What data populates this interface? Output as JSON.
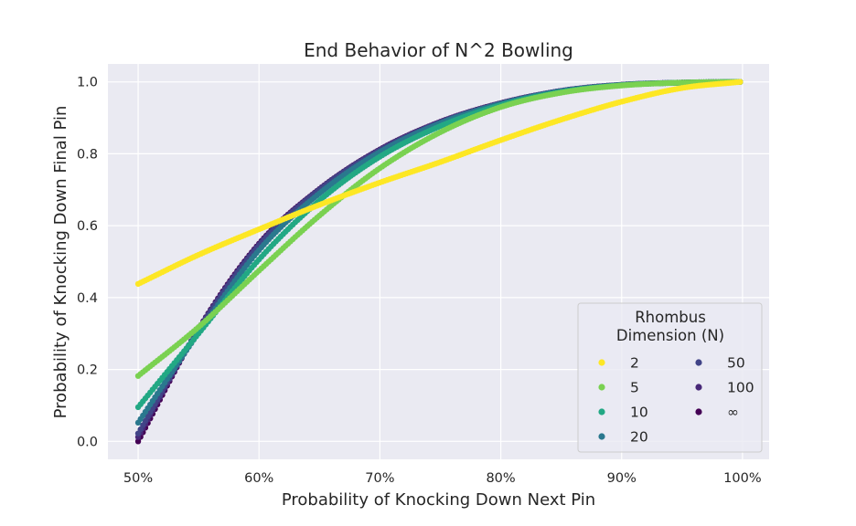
{
  "chart_data": {
    "type": "scatter",
    "title": "End Behavior of N^2 Bowling",
    "xlabel": "Probability of Knocking Down Next Pin",
    "ylabel": "Probability of Knocking Down Final Pin",
    "xlim": [
      0.475,
      1.022
    ],
    "ylim": [
      -0.05,
      1.05
    ],
    "x_ticks": [
      0.5,
      0.6,
      0.7,
      0.8,
      0.9,
      1.0
    ],
    "x_tick_labels": [
      "50%",
      "60%",
      "70%",
      "80%",
      "90%",
      "100%"
    ],
    "y_ticks": [
      0.0,
      0.2,
      0.4,
      0.6,
      0.8,
      1.0
    ],
    "y_tick_labels": [
      "0.0",
      "0.2",
      "0.4",
      "0.6",
      "0.8",
      "1.0"
    ],
    "grid": true,
    "background": "#eaeaf2",
    "legend": {
      "title": "Rhombus\nDimension (N)",
      "placement": "lower-right",
      "columns": 2
    },
    "series": [
      {
        "name": "2",
        "color": "#fde725",
        "x": [
          0.5,
          0.55,
          0.6,
          0.65,
          0.7,
          0.75,
          0.8,
          0.85,
          0.9,
          0.95,
          0.998
        ],
        "y": [
          0.438,
          0.519,
          0.59,
          0.658,
          0.72,
          0.777,
          0.838,
          0.895,
          0.945,
          0.983,
          1.0
        ]
      },
      {
        "name": "5",
        "color": "#7ad151",
        "x": [
          0.5,
          0.55,
          0.6,
          0.65,
          0.7,
          0.75,
          0.8,
          0.85,
          0.9,
          0.95,
          0.998
        ],
        "y": [
          0.182,
          0.318,
          0.475,
          0.628,
          0.76,
          0.86,
          0.93,
          0.97,
          0.99,
          0.998,
          1.0
        ]
      },
      {
        "name": "10",
        "color": "#22a884",
        "x": [
          0.5,
          0.55,
          0.6,
          0.65,
          0.7,
          0.75,
          0.8,
          0.85,
          0.9,
          0.95,
          0.998
        ],
        "y": [
          0.095,
          0.3,
          0.506,
          0.67,
          0.792,
          0.877,
          0.935,
          0.972,
          0.991,
          0.998,
          1.0
        ]
      },
      {
        "name": "20",
        "color": "#2a788e",
        "x": [
          0.5,
          0.55,
          0.6,
          0.65,
          0.7,
          0.75,
          0.8,
          0.85,
          0.9,
          0.95,
          0.998
        ],
        "y": [
          0.052,
          0.302,
          0.532,
          0.69,
          0.805,
          0.885,
          0.939,
          0.974,
          0.991,
          0.998,
          1.0
        ]
      },
      {
        "name": "50",
        "color": "#414487",
        "x": [
          0.5,
          0.55,
          0.6,
          0.65,
          0.7,
          0.75,
          0.8,
          0.85,
          0.9,
          0.95,
          0.998
        ],
        "y": [
          0.022,
          0.311,
          0.545,
          0.7,
          0.81,
          0.888,
          0.94,
          0.975,
          0.992,
          0.998,
          1.0
        ]
      },
      {
        "name": "100",
        "color": "#482878",
        "x": [
          0.5,
          0.55,
          0.6,
          0.65,
          0.7,
          0.75,
          0.8,
          0.85,
          0.9,
          0.95,
          0.998
        ],
        "y": [
          0.012,
          0.312,
          0.548,
          0.701,
          0.811,
          0.888,
          0.94,
          0.975,
          0.992,
          0.998,
          1.0
        ]
      },
      {
        "name": "∞",
        "color": "#440154",
        "x": [
          0.5,
          0.55,
          0.6,
          0.65,
          0.7,
          0.75,
          0.8,
          0.85,
          0.9,
          0.95,
          0.998
        ],
        "y": [
          0.0,
          0.313,
          0.55,
          0.702,
          0.812,
          0.889,
          0.941,
          0.975,
          0.992,
          0.998,
          1.0
        ]
      }
    ]
  }
}
